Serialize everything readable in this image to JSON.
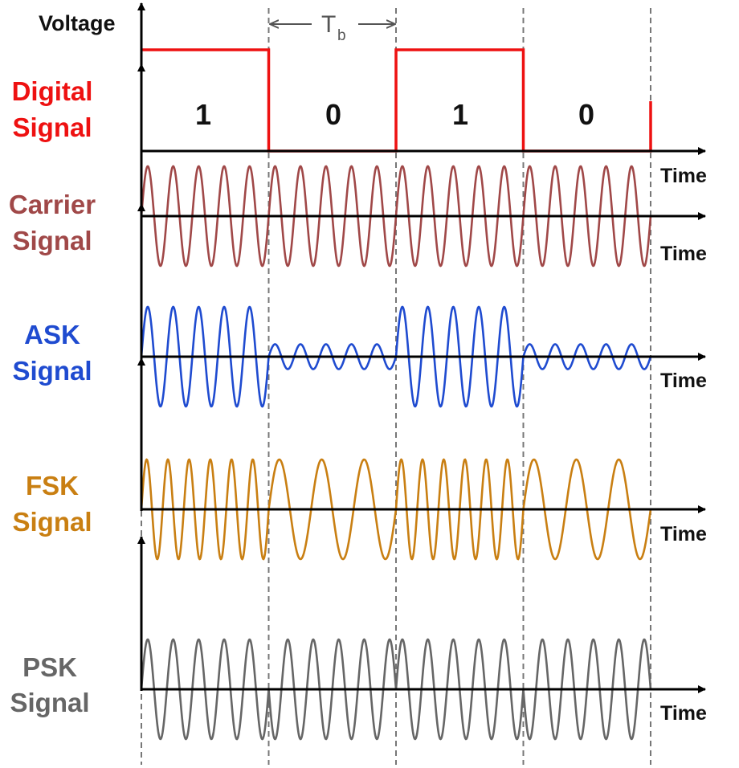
{
  "voltage_label": "Voltage",
  "bit_period_label": {
    "main": "T",
    "sub": "b"
  },
  "bits": [
    "1",
    "0",
    "1",
    "0"
  ],
  "colors": {
    "digital": "#ee1111",
    "carrier": "#a04848",
    "ask": "#1f4bd0",
    "fsk": "#c97f12",
    "psk": "#666666",
    "axis": "#000000",
    "divider": "#777777"
  },
  "rows": [
    {
      "id": "digital",
      "label_lines": [
        "Digital",
        "Signal"
      ],
      "time_label": "Time"
    },
    {
      "id": "carrier",
      "label_lines": [
        "Carrier",
        "Signal"
      ],
      "time_label": "Time"
    },
    {
      "id": "ask",
      "label_lines": [
        "ASK",
        "Signal"
      ],
      "time_label": "Time"
    },
    {
      "id": "fsk",
      "label_lines": [
        "FSK",
        "Signal"
      ],
      "time_label": "Time"
    },
    {
      "id": "psk",
      "label_lines": [
        "PSK",
        "Signal"
      ],
      "time_label": "Time"
    }
  ],
  "waveforms": {
    "carrier_cycles_per_bit": 5,
    "ask": {
      "high_amplitude_ratio": 1.0,
      "low_amplitude_ratio": 0.25,
      "cycles_per_bit": 5
    },
    "fsk": {
      "mark_cycles_per_bit": 6,
      "space_cycles_per_bit": 3
    },
    "psk": {
      "cycles_per_bit": 5,
      "phase_for_1_deg": 0,
      "phase_for_0_deg": 180
    }
  }
}
